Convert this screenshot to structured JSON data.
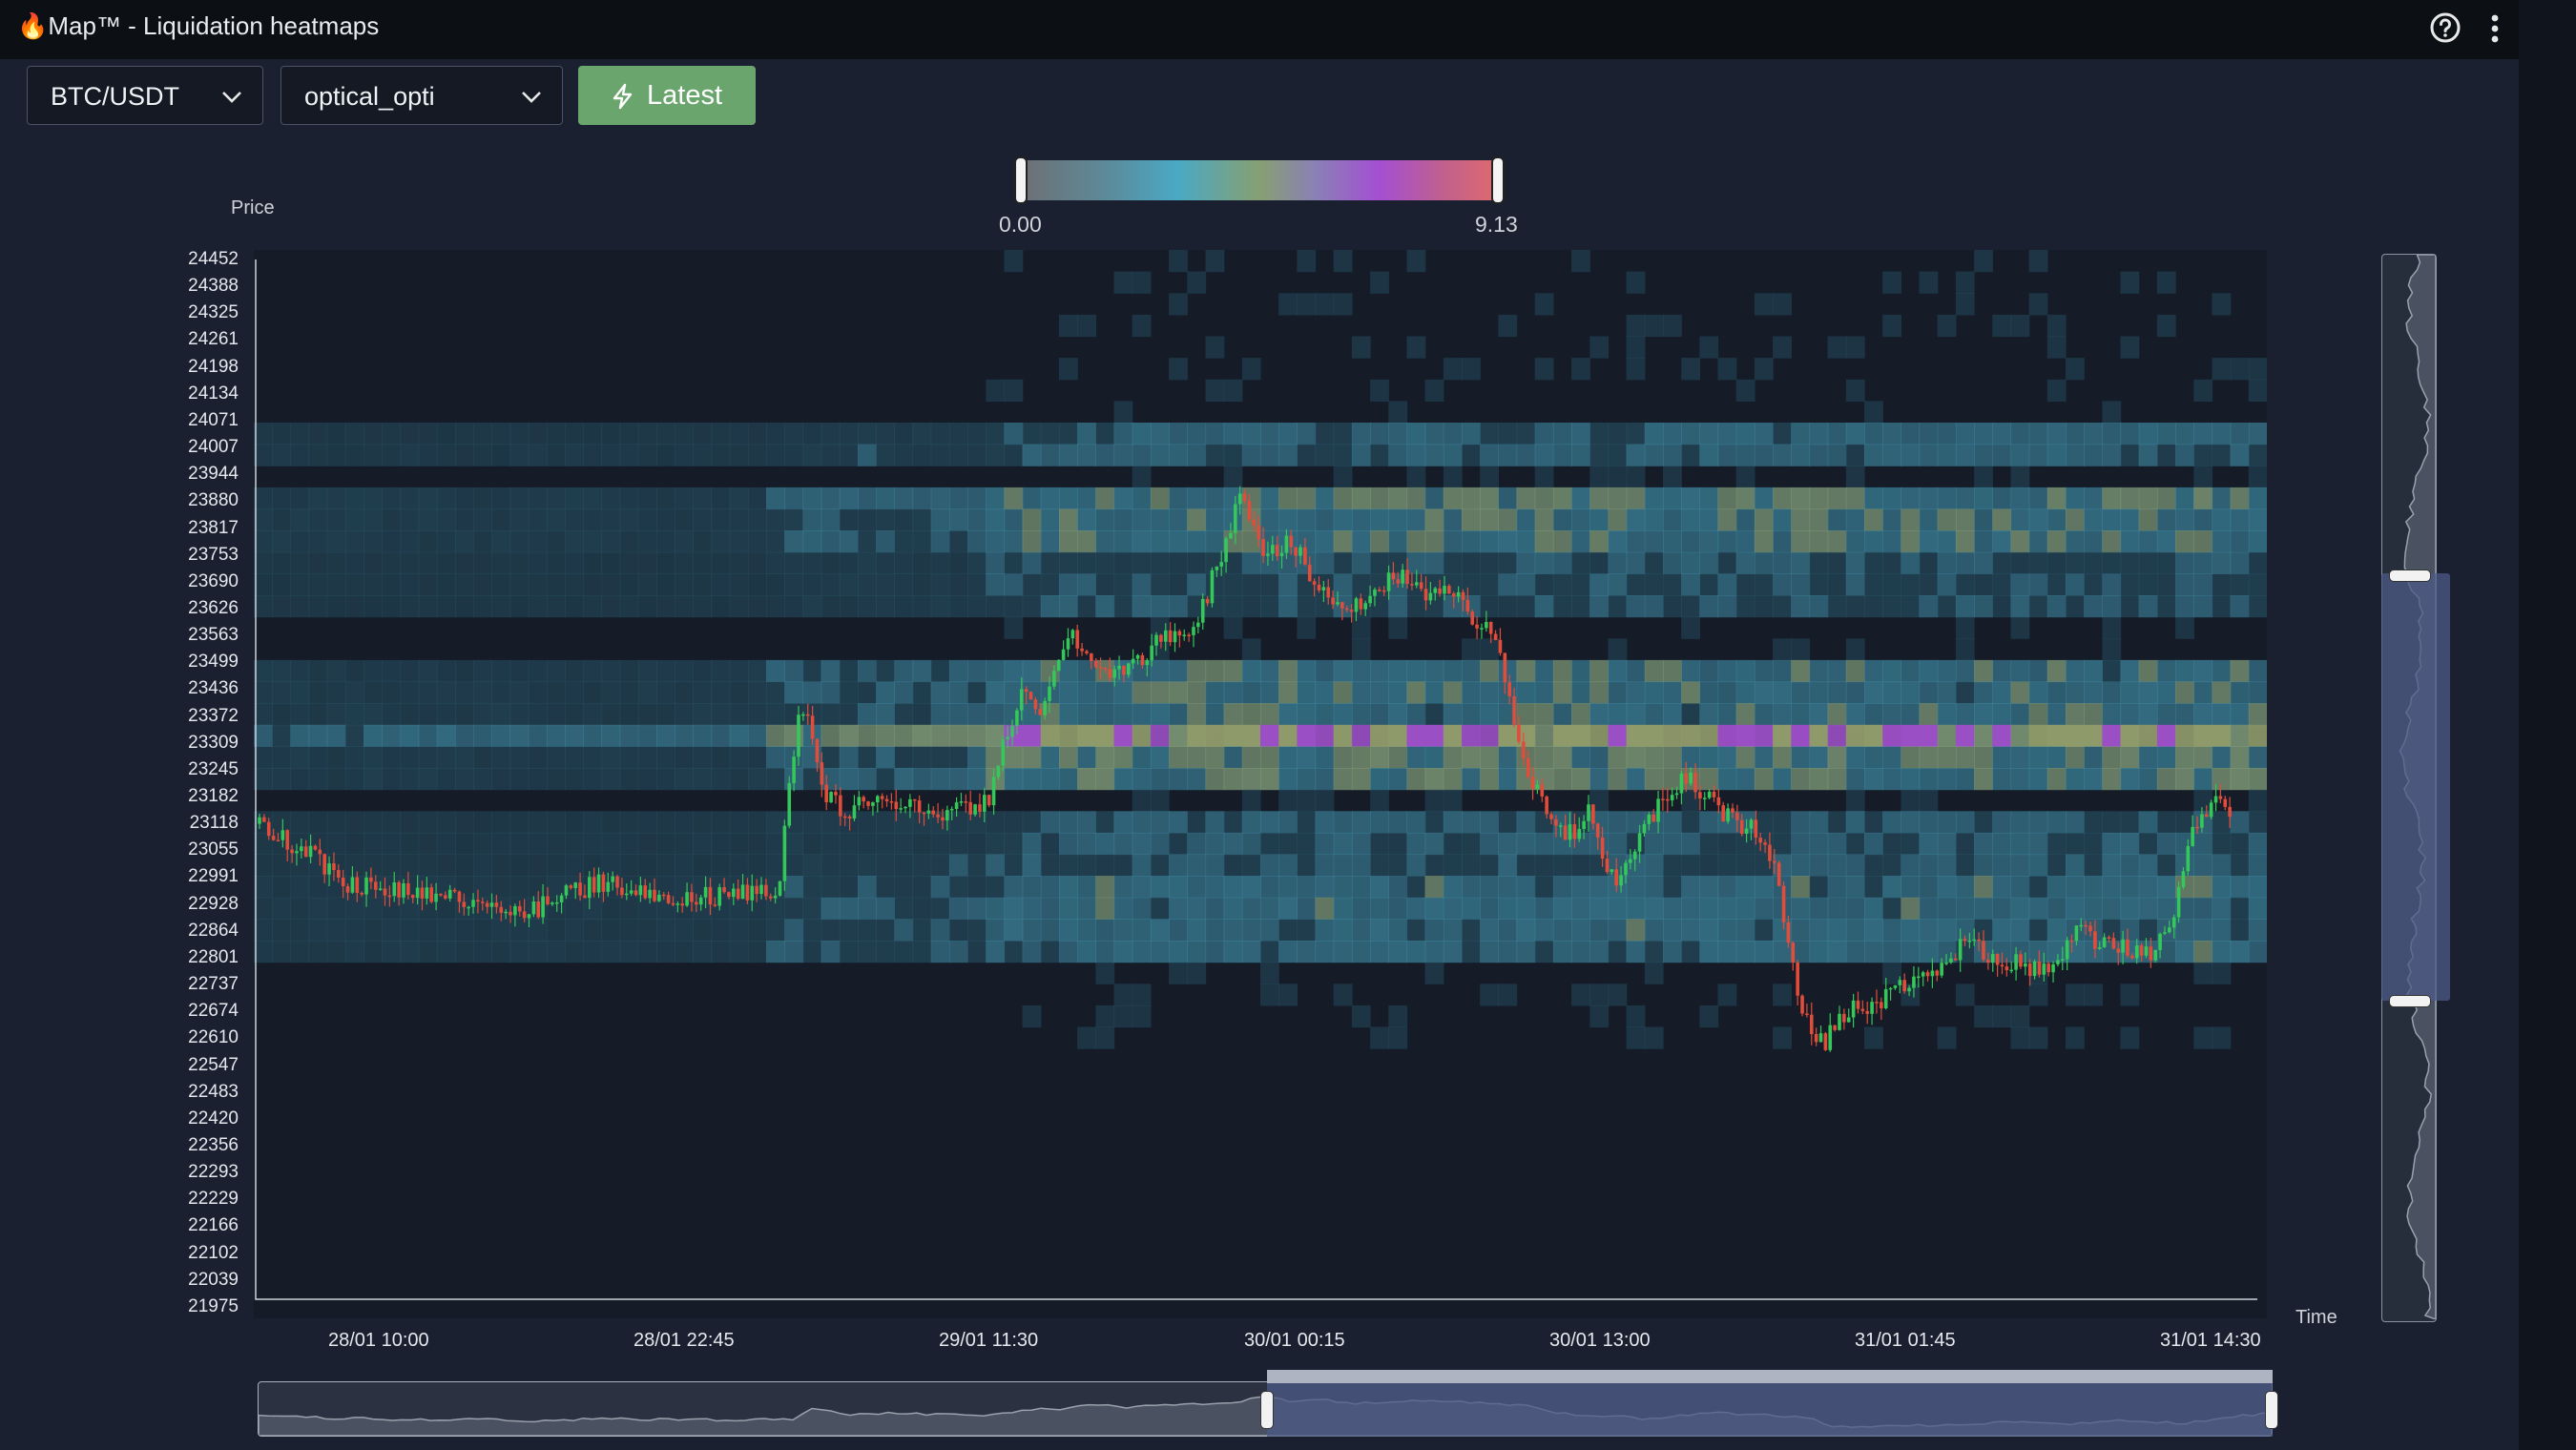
{
  "window": {
    "title_icon": "flame-icon",
    "title": "Map™ - Liquidation heatmaps"
  },
  "toolbar": {
    "pair": "BTC/USDT",
    "model": "optical_opti",
    "latest_label": "Latest"
  },
  "colors": {
    "page_bg": "#1a2030",
    "titlebar_bg": "#0c0f14",
    "latest_button": "#6aa56d",
    "candle_up": "#34c759",
    "candle_down": "#e24c3a",
    "selection": "#4c5a86"
  },
  "colorscale": {
    "min_label": "0.00",
    "max_label": "9.13"
  },
  "chart_data": {
    "type": "heatmap",
    "ylabel": "Price",
    "xlabel": "Time",
    "y_ticks": [
      "24452",
      "24388",
      "24325",
      "24261",
      "24198",
      "24134",
      "24071",
      "24007",
      "23944",
      "23880",
      "23817",
      "23753",
      "23690",
      "23626",
      "23563",
      "23499",
      "23436",
      "23372",
      "23309",
      "23245",
      "23182",
      "23118",
      "23055",
      "22991",
      "22928",
      "22864",
      "22801",
      "22737",
      "22674",
      "22610",
      "22547",
      "22483",
      "22420",
      "22356",
      "22293",
      "22229",
      "22166",
      "22102",
      "22039",
      "21975"
    ],
    "x_ticks": [
      "28/01 10:00",
      "28/01 22:45",
      "29/01 11:30",
      "30/01 00:15",
      "30/01 13:00",
      "31/01 01:45",
      "31/01 14:30"
    ],
    "ylim": [
      21975,
      24452
    ],
    "price_path": [
      [
        0,
        23130
      ],
      [
        20,
        23070
      ],
      [
        40,
        22990
      ],
      [
        60,
        22970
      ],
      [
        80,
        22960
      ],
      [
        100,
        22950
      ],
      [
        115,
        22900
      ],
      [
        130,
        22960
      ],
      [
        150,
        22990
      ],
      [
        165,
        22980
      ],
      [
        180,
        22950
      ],
      [
        200,
        22960
      ],
      [
        215,
        22960
      ],
      [
        225,
        22970
      ],
      [
        235,
        23440
      ],
      [
        245,
        23200
      ],
      [
        255,
        23150
      ],
      [
        265,
        23200
      ],
      [
        275,
        23190
      ],
      [
        285,
        23170
      ],
      [
        295,
        23160
      ],
      [
        305,
        23170
      ],
      [
        315,
        23180
      ],
      [
        330,
        23460
      ],
      [
        340,
        23400
      ],
      [
        350,
        23590
      ],
      [
        360,
        23520
      ],
      [
        370,
        23480
      ],
      [
        380,
        23520
      ],
      [
        395,
        23590
      ],
      [
        405,
        23600
      ],
      [
        415,
        23760
      ],
      [
        425,
        23920
      ],
      [
        435,
        23760
      ],
      [
        445,
        23820
      ],
      [
        455,
        23720
      ],
      [
        465,
        23640
      ],
      [
        475,
        23660
      ],
      [
        485,
        23700
      ],
      [
        495,
        23720
      ],
      [
        505,
        23660
      ],
      [
        515,
        23690
      ],
      [
        525,
        23620
      ],
      [
        535,
        23580
      ],
      [
        545,
        23280
      ],
      [
        555,
        23180
      ],
      [
        565,
        23100
      ],
      [
        575,
        23160
      ],
      [
        585,
        22980
      ],
      [
        595,
        23090
      ],
      [
        605,
        23180
      ],
      [
        615,
        23240
      ],
      [
        625,
        23200
      ],
      [
        635,
        23140
      ],
      [
        645,
        23120
      ],
      [
        655,
        23000
      ],
      [
        665,
        22680
      ],
      [
        675,
        22600
      ],
      [
        685,
        22680
      ],
      [
        695,
        22690
      ],
      [
        705,
        22720
      ],
      [
        715,
        22760
      ],
      [
        725,
        22780
      ],
      [
        735,
        22840
      ],
      [
        745,
        22820
      ],
      [
        755,
        22800
      ],
      [
        765,
        22780
      ],
      [
        775,
        22800
      ],
      [
        785,
        22890
      ],
      [
        795,
        22840
      ],
      [
        805,
        22830
      ],
      [
        815,
        22820
      ],
      [
        825,
        22900
      ],
      [
        835,
        23120
      ],
      [
        845,
        23180
      ],
      [
        850,
        23160
      ]
    ]
  }
}
